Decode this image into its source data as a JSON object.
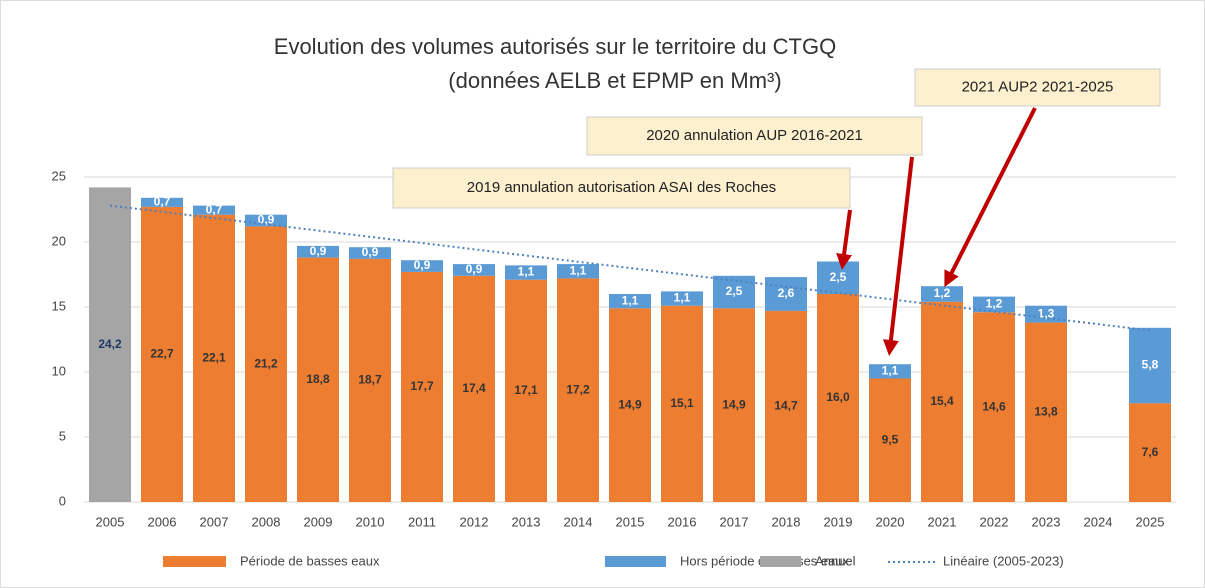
{
  "chart_data": {
    "type": "bar",
    "stacked": true,
    "title": "Evolution des volumes autorisés sur le territoire du CTGQ",
    "subtitle": "(données AELB et EPMP en Mm³)",
    "categories": [
      "2005",
      "2006",
      "2007",
      "2008",
      "2009",
      "2010",
      "2011",
      "2012",
      "2013",
      "2014",
      "2015",
      "2016",
      "2017",
      "2018",
      "2019",
      "2020",
      "2021",
      "2022",
      "2023",
      "2024",
      "2025"
    ],
    "series": [
      {
        "name": "Période de basses eaux",
        "color": "#ed7d31",
        "label_color": "#333333",
        "values": [
          null,
          22.7,
          22.1,
          21.2,
          18.8,
          18.7,
          17.7,
          17.4,
          17.1,
          17.2,
          14.9,
          15.1,
          14.9,
          14.7,
          16.0,
          9.5,
          15.4,
          14.6,
          13.8,
          null,
          7.6
        ],
        "value_labels": [
          null,
          "22,7",
          "22,1",
          "21,2",
          "18,8",
          "18,7",
          "17,7",
          "17,4",
          "17,1",
          "17,2",
          "14,9",
          "15,1",
          "14,9",
          "14,7",
          "16,0",
          "9,5",
          "15,4",
          "14,6",
          "13,8",
          null,
          "7,6"
        ]
      },
      {
        "name": "Hors période de basses eaux",
        "color": "#5b9bd5",
        "label_color": "#ffffff",
        "values": [
          null,
          0.7,
          0.7,
          0.9,
          0.9,
          0.9,
          0.9,
          0.9,
          1.1,
          1.1,
          1.1,
          1.1,
          2.5,
          2.6,
          2.5,
          1.1,
          1.2,
          1.2,
          1.3,
          null,
          5.8
        ],
        "value_labels": [
          null,
          "0,7",
          "0,7",
          "0,9",
          "0,9",
          "0,9",
          "0,9",
          "0,9",
          "1,1",
          "1,1",
          "1,1",
          "1,1",
          "2,5",
          "2,6",
          "2,5",
          "1,1",
          "1,2",
          "1,2",
          "1,3",
          null,
          "5,8"
        ]
      },
      {
        "name": "Annuel",
        "color": "#a5a5a5",
        "label_color": "#1f3864",
        "values": [
          24.2,
          null,
          null,
          null,
          null,
          null,
          null,
          null,
          null,
          null,
          null,
          null,
          null,
          null,
          null,
          null,
          null,
          null,
          null,
          null,
          null
        ],
        "value_labels": [
          "24,2",
          null,
          null,
          null,
          null,
          null,
          null,
          null,
          null,
          null,
          null,
          null,
          null,
          null,
          null,
          null,
          null,
          null,
          null,
          null,
          null
        ]
      }
    ],
    "trendline": {
      "name": "Linéaire (2005-2023)",
      "color": "#4f81bd",
      "values": [
        22.8,
        22.32,
        21.84,
        21.36,
        20.88,
        20.4,
        19.92,
        19.44,
        18.96,
        18.48,
        18.0,
        17.52,
        17.04,
        16.56,
        16.08,
        15.6,
        15.12,
        14.64,
        14.16,
        13.68,
        13.2
      ]
    },
    "ylim": [
      0,
      25
    ],
    "yticks": [
      0,
      5,
      10,
      15,
      20,
      25
    ],
    "grid": true,
    "annotations": [
      "2019 annulation autorisation ASAI des Roches",
      "2020 annulation AUP 2016-2021",
      "2021 AUP2 2021-2025"
    ]
  }
}
